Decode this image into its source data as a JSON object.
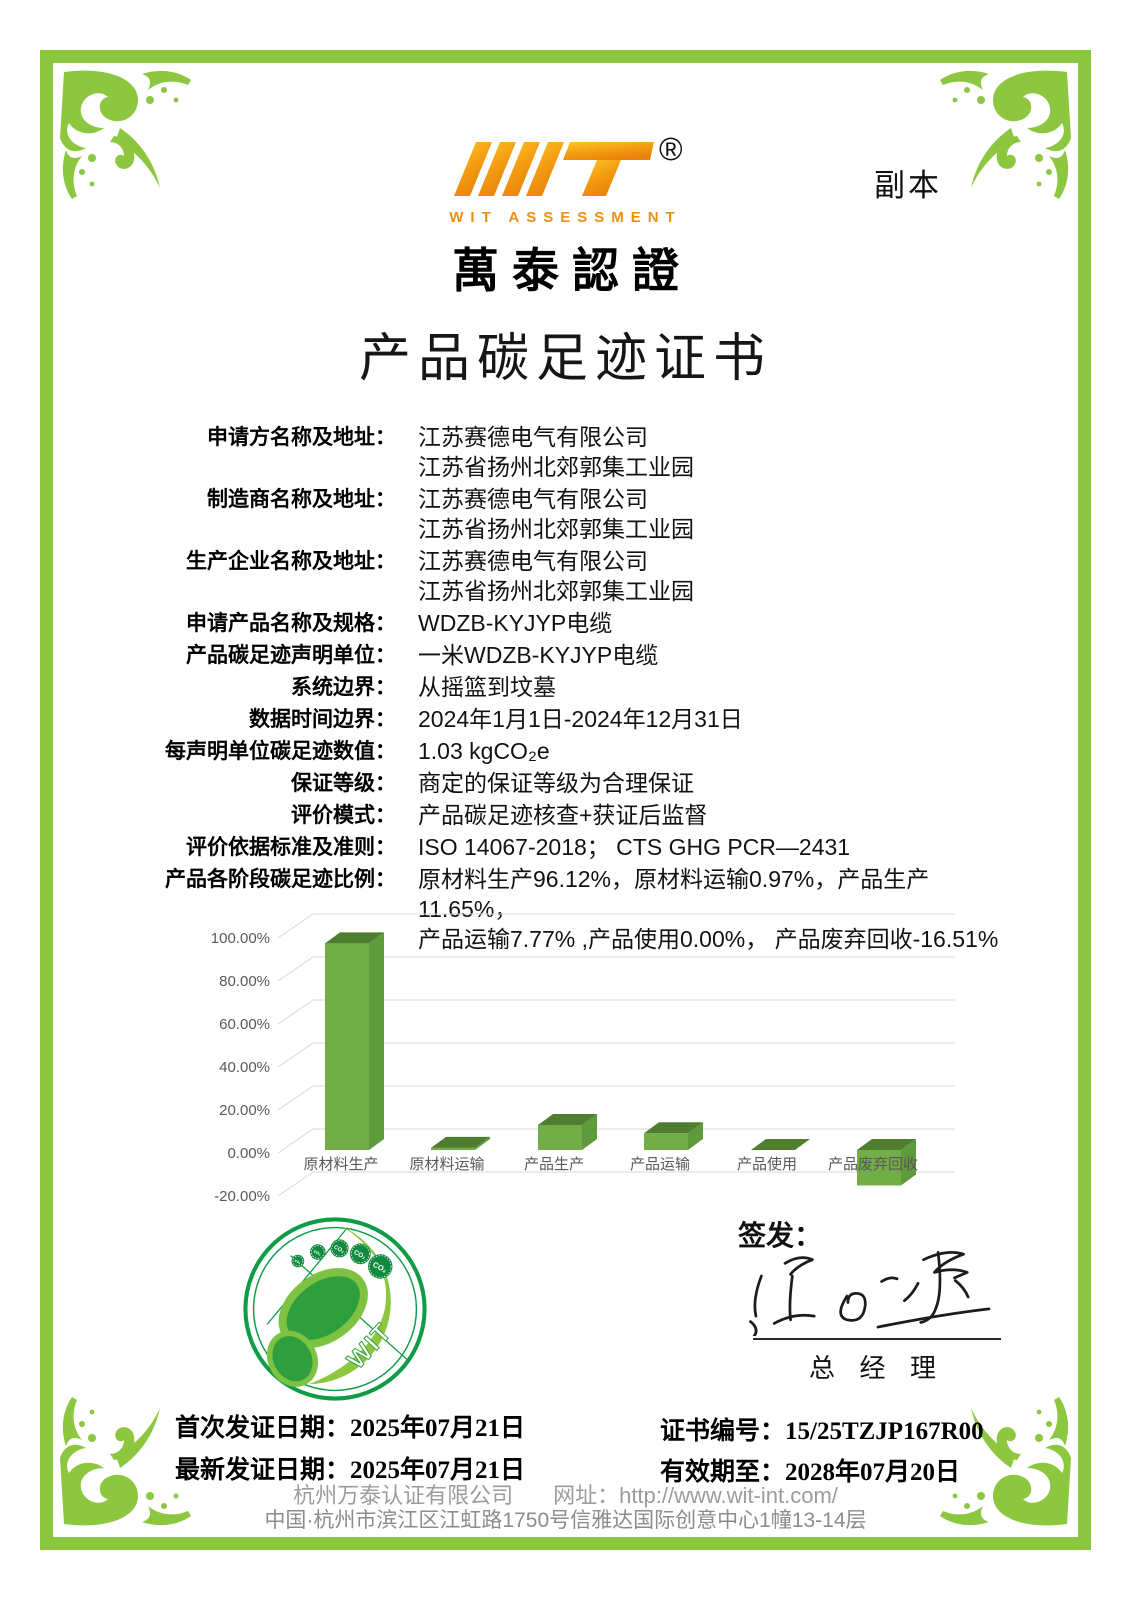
{
  "page": {
    "copy_label": "副本",
    "title": "产品碳足迹证书"
  },
  "logo": {
    "wordmark": "WIT",
    "registered_mark": "®",
    "subtitle": "WIT ASSESSMENT",
    "cn_name": "萬泰認證",
    "gold_top": "#FFC92B",
    "gold_bottom": "#E8820C"
  },
  "fields": [
    {
      "label": "申请方名称及地址：",
      "lines": [
        "江苏赛德电气有限公司",
        "江苏省扬州北郊郭集工业园"
      ]
    },
    {
      "label": "制造商名称及地址：",
      "lines": [
        "江苏赛德电气有限公司",
        "江苏省扬州北郊郭集工业园"
      ]
    },
    {
      "label": "生产企业名称及地址：",
      "lines": [
        "江苏赛德电气有限公司",
        "江苏省扬州北郊郭集工业园"
      ]
    },
    {
      "label": "申请产品名称及规格：",
      "lines": [
        "WDZB-KYJYP电缆"
      ]
    },
    {
      "label": "产品碳足迹声明单位：",
      "lines": [
        "一米WDZB-KYJYP电缆"
      ]
    },
    {
      "label": "系统边界：",
      "lines": [
        "从摇篮到坟墓"
      ]
    },
    {
      "label": "数据时间边界：",
      "lines": [
        "2024年1月1日-2024年12月31日"
      ]
    },
    {
      "label": "每声明单位碳足迹数值：",
      "lines": [
        "1.03 kgCO₂e"
      ]
    },
    {
      "label": "保证等级：",
      "lines": [
        "商定的保证等级为合理保证"
      ]
    },
    {
      "label": "评价模式：",
      "lines": [
        "产品碳足迹核查+获证后监督"
      ]
    },
    {
      "label": "评价依据标准及准则：",
      "lines": [
        "ISO 14067-2018；  CTS GHG PCR—2431"
      ]
    },
    {
      "label": "产品各阶段碳足迹比例：",
      "lines": [
        "原材料生产96.12%，原材料运输0.97%，产品生产11.65%，",
        "产品运输7.77% ,产品使用0.00%， 产品废弃回收-16.51%"
      ]
    }
  ],
  "chart_data": {
    "type": "bar",
    "style": "3d-column",
    "categories": [
      "原材料生产",
      "原材料运输",
      "产品生产",
      "产品运输",
      "产品使用",
      "产品废弃回收"
    ],
    "values": [
      96.12,
      0.97,
      11.65,
      7.77,
      0.0,
      -16.51
    ],
    "unit": "%",
    "title": "",
    "xlabel": "",
    "ylabel": "",
    "ylim": [
      -20,
      100
    ],
    "y_ticks": [
      100,
      80,
      60,
      40,
      20,
      0,
      -20
    ],
    "y_tick_labels": [
      "100.00%",
      "80.00%",
      "60.00%",
      "40.00%",
      "20.00%",
      "0.00%",
      "-20.00%"
    ],
    "grid": true,
    "legend": "none",
    "bar_colors": {
      "front": "#72AD48",
      "top": "#4F7E31",
      "side": "#5F9A3C"
    },
    "grid_color": "#D8D8D8"
  },
  "seal": {
    "wit_text": "WIT",
    "badges": [
      "co₂",
      "co₂",
      "CO₂",
      "CO₂",
      "CO₂"
    ]
  },
  "signature": {
    "label": "签发：",
    "signer_title": "总 经 理"
  },
  "issue_info": {
    "first_issue": {
      "label": "首次发证日期：",
      "value": "2025年07月21日"
    },
    "latest_issue": {
      "label": "最新发证日期：",
      "value": "2025年07月21日"
    },
    "cert_no": {
      "label": "证书编号：",
      "value": "15/25TZJP167R00"
    },
    "valid_until": {
      "label": "有效期至：",
      "value": "2028年07月20日"
    }
  },
  "footer": {
    "company": "杭州万泰认证有限公司",
    "website": "网址：http://www.wit-int.com/",
    "address": "中国·杭州市滨江区江虹路1750号信雅达国际创意中心1幢13-14层"
  }
}
